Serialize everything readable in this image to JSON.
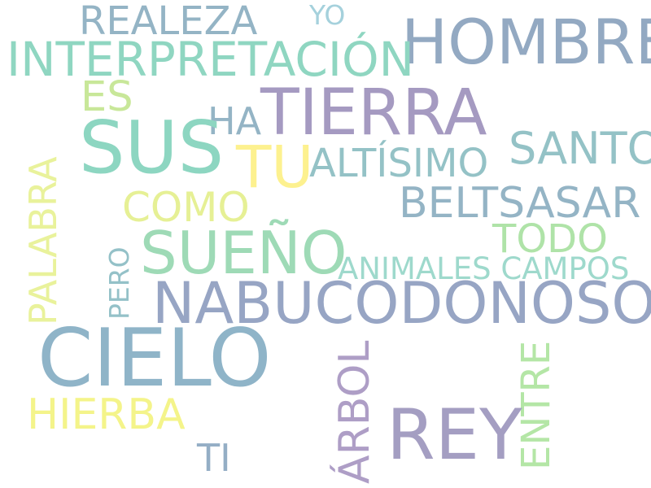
{
  "words": {
    "realeza": {
      "text": "REALEZA",
      "color": "#94b4c5"
    },
    "yo": {
      "text": "YO",
      "color": "#a5d1dc"
    },
    "hombre": {
      "text": "HOMBRE",
      "color": "#93a9c2"
    },
    "interpretacion": {
      "text": "INTERPRETACIÓN",
      "color": "#8fd6c1"
    },
    "es": {
      "text": "ES",
      "color": "#c8e799"
    },
    "tierra": {
      "text": "TIERRA",
      "color": "#a59ac1"
    },
    "ha": {
      "text": "HA",
      "color": "#94b4c5"
    },
    "sus": {
      "text": "SUS",
      "color": "#8dd6c1"
    },
    "santo": {
      "text": "SANTO",
      "color": "#94c2c6"
    },
    "tu": {
      "text": "TU",
      "color": "#fdf18f"
    },
    "altisimo": {
      "text": "ALTÍSIMO",
      "color": "#94c2c6"
    },
    "palabra": {
      "text": "PALABRA",
      "color": "#e9f29b"
    },
    "beltsasar": {
      "text": "BELTSASAR",
      "color": "#94b4c5"
    },
    "como": {
      "text": "COMO",
      "color": "#e6f095"
    },
    "todo": {
      "text": "TODO",
      "color": "#afe3a8"
    },
    "sueno": {
      "text": "SUEÑO",
      "color": "#9edab6"
    },
    "animales_campos": {
      "text": "ANIMALES CAMPOS",
      "color": "#9ed9cc"
    },
    "pero": {
      "text": "PERO",
      "color": "#94c1c8"
    },
    "nabucodonosor": {
      "text": "NABUCODONOSOR",
      "color": "#97a5c4"
    },
    "cielo": {
      "text": "CIELO",
      "color": "#8fb4c8"
    },
    "arbol": {
      "text": "ÁRBOL",
      "color": "#ae9ec6"
    },
    "entre": {
      "text": "ENTRE",
      "color": "#b4e6a6"
    },
    "rey": {
      "text": "REY",
      "color": "#a49ec2"
    },
    "hierba": {
      "text": "HIERBA",
      "color": "#f4f48a"
    },
    "ti": {
      "text": "TI",
      "color": "#94aec5"
    }
  }
}
